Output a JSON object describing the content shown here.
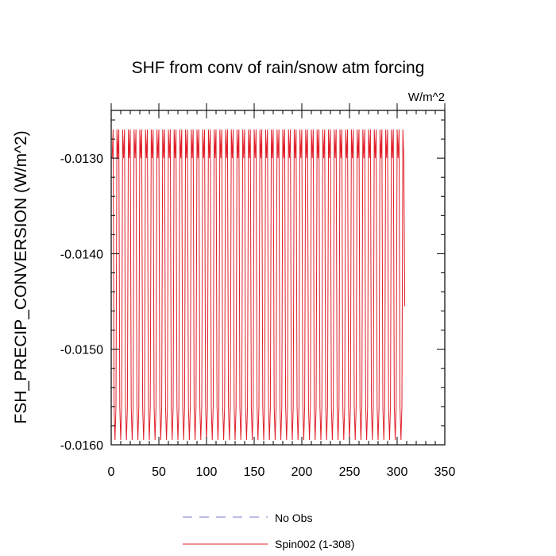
{
  "chart_data": {
    "type": "line",
    "title": "SHF from conv of rain/snow atm forcing",
    "units": "W/m^2",
    "xlabel": "",
    "ylabel": "FSH_PRECIP_CONVERSION  (W/m^2)",
    "xlim": [
      0,
      350
    ],
    "ylim": [
      -0.016,
      -0.0125
    ],
    "xticks": [
      0,
      50,
      100,
      150,
      200,
      250,
      300,
      350
    ],
    "xtick_labels": [
      "0",
      "50",
      "100",
      "150",
      "200",
      "250",
      "300",
      "350"
    ],
    "yticks": [
      -0.016,
      -0.015,
      -0.014,
      -0.013
    ],
    "ytick_labels": [
      "-0.0160",
      "-0.0150",
      "-0.0140",
      "-0.0130"
    ],
    "grid": false,
    "legend_position": "bottom",
    "series": [
      {
        "name": "No Obs",
        "color": "#7b7bd6",
        "style": "dashed",
        "x": [],
        "y": []
      },
      {
        "name": "Spin002 (1-308)",
        "color": "#e0202a",
        "style": "solid",
        "cycle_length": 12,
        "cycle_values": [
          -0.013,
          -0.0127,
          -0.0156,
          -0.01595,
          -0.0156,
          -0.0127,
          -0.013,
          -0.0127,
          -0.0156,
          -0.01595,
          -0.0156,
          -0.0127
        ],
        "x_start": 1,
        "x_end": 308,
        "last_value": -0.01455
      }
    ]
  }
}
